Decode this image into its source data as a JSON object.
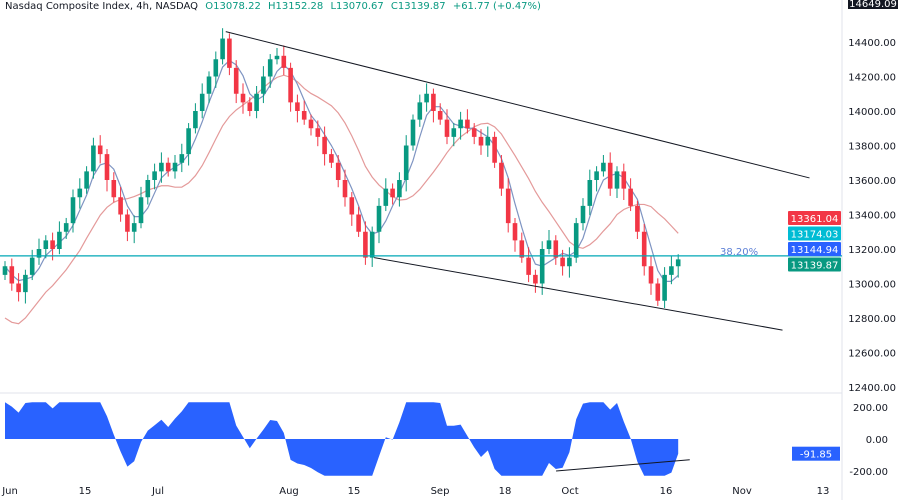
{
  "header": {
    "symbol": "Nasdaq Composite Index, 4h, NASDAQ",
    "open": "O13078.22",
    "high": "H13152.28",
    "low": "L13070.67",
    "close": "C13139.87",
    "change": "+61.77 (+0.47%)"
  },
  "chart_data": {
    "type": "candlestick",
    "price_axis": {
      "ticks": [
        12400,
        12600,
        12800,
        13000,
        13200,
        13400,
        13600,
        13800,
        14000,
        14200,
        14400
      ],
      "top_label": "14649.09"
    },
    "x_ticks": [
      {
        "label": "Jun",
        "date": "2023-06-01"
      },
      {
        "label": "15",
        "date": "2023-06-15"
      },
      {
        "label": "Jul",
        "date": "2023-07-03"
      },
      {
        "label": "Aug",
        "date": "2023-08-01"
      },
      {
        "label": "15",
        "date": "2023-08-15"
      },
      {
        "label": "Sep",
        "date": "2023-09-01"
      },
      {
        "label": "18",
        "date": "2023-09-18"
      },
      {
        "label": "Oct",
        "date": "2023-10-02"
      },
      {
        "label": "16",
        "date": "2023-10-16"
      },
      {
        "label": "Nov",
        "date": "2023-11-01"
      },
      {
        "label": "13",
        "date": "2023-11-13"
      }
    ],
    "closes": [
      13100,
      13000,
      12950,
      13050,
      13150,
      13200,
      13250,
      13200,
      13300,
      13350,
      13500,
      13550,
      13650,
      13800,
      13750,
      13600,
      13500,
      13400,
      13300,
      13350,
      13500,
      13600,
      13650,
      13700,
      13650,
      13700,
      13750,
      13900,
      14000,
      14100,
      14200,
      14300,
      14420,
      14250,
      14100,
      14050,
      14000,
      14100,
      14200,
      14300,
      14320,
      14250,
      14050,
      14000,
      13950,
      13900,
      13850,
      13750,
      13700,
      13600,
      13500,
      13400,
      13300,
      13150,
      13300,
      13450,
      13550,
      13500,
      13600,
      13800,
      13950,
      14050,
      14100,
      14000,
      13950,
      13850,
      13900,
      13950,
      13900,
      13850,
      13800,
      13850,
      13700,
      13550,
      13350,
      13250,
      13150,
      13050,
      13000,
      13200,
      13250,
      13150,
      13100,
      13150,
      13350,
      13450,
      13600,
      13650,
      13700,
      13550,
      13650,
      13550,
      13450,
      13300,
      13100,
      13000,
      12900,
      13050,
      13100,
      13139.87
    ],
    "first_open": 13050,
    "trendlines": [
      {
        "from": [
          "2023-07-18",
          14460
        ],
        "to": [
          "2023-11-11",
          13612
        ]
      },
      {
        "from": [
          "2023-08-19",
          13150
        ],
        "to": [
          "2023-11-07",
          12730
        ]
      }
    ],
    "fib_level": {
      "label": "38.20%",
      "price": 13160
    },
    "price_labels": [
      {
        "value": "13361.04",
        "color": "#f23645"
      },
      {
        "value": "13174.03",
        "color": "#00bcd4"
      },
      {
        "value": "13144.94",
        "color": "#2962ff"
      },
      {
        "value": "13139.87",
        "color": "#089981"
      }
    ],
    "oscillator": {
      "ticks": [
        "200.00",
        "0.00",
        "-200.00"
      ],
      "last_value": "-91.85",
      "color": "#2962ff",
      "divergence_line": {
        "from": [
          "2023-09-29",
          -200
        ],
        "to": [
          "2023-10-21",
          -130
        ]
      }
    },
    "colors": {
      "up": "#089981",
      "down": "#f23645",
      "ma_fast": "#7e94c2",
      "ma_slow": "#e49a9a",
      "fib": "#00a7b5"
    }
  }
}
